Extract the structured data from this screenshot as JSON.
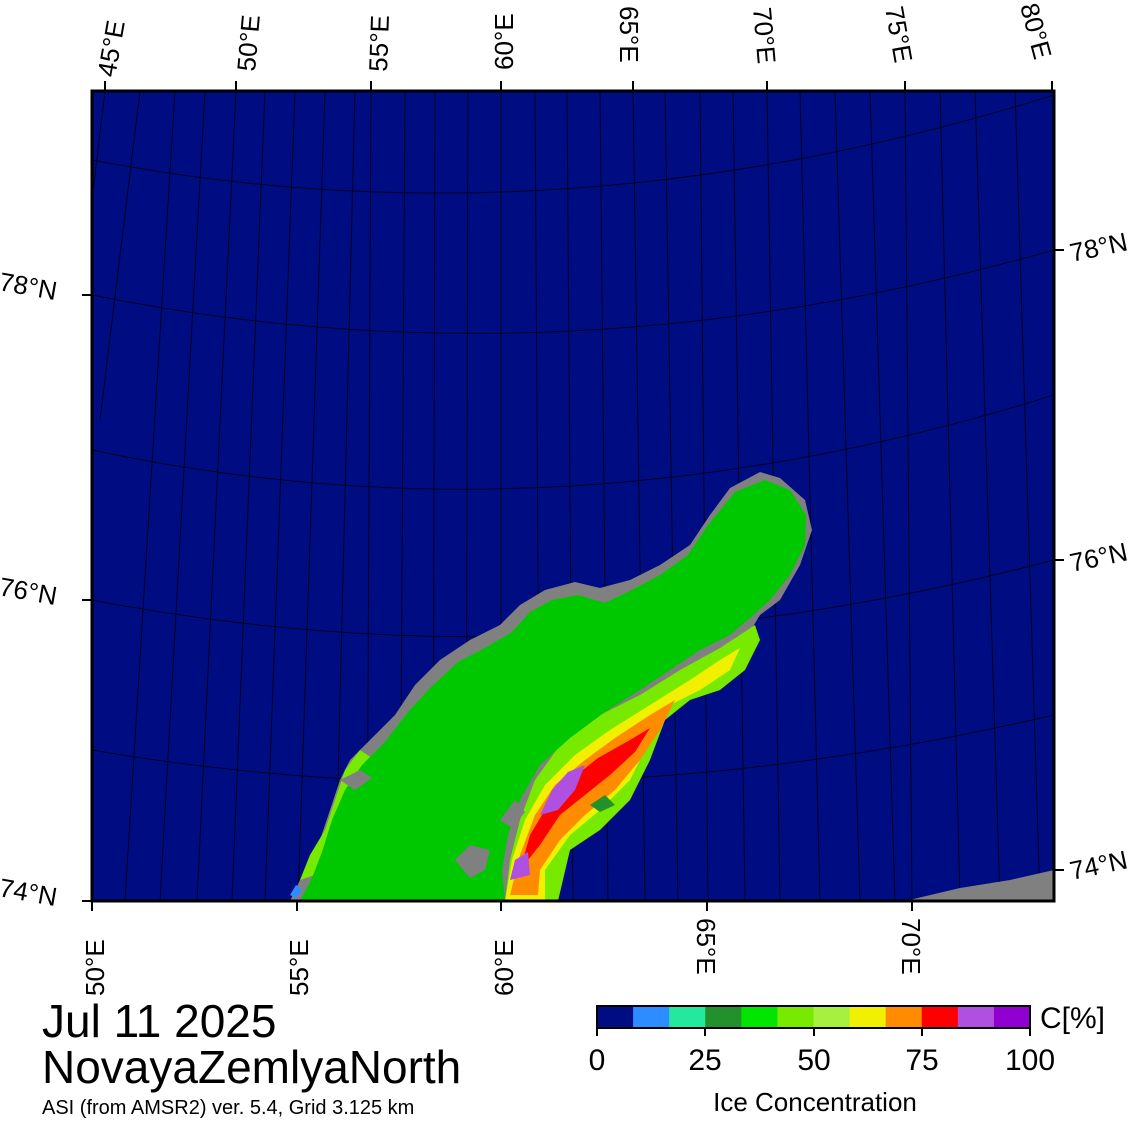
{
  "map": {
    "top_lon_labels": [
      "45°E",
      "50°E",
      "55°E",
      "60°E",
      "65°E",
      "70°E",
      "75°E",
      "80°E"
    ],
    "bottom_lon_labels": [
      "50°E",
      "55°E",
      "60°E",
      "65°E",
      "70°E"
    ],
    "left_lat_labels": [
      "78°N",
      "76°N",
      "74°N"
    ],
    "right_lat_labels": [
      "78°N",
      "76°N",
      "74°N"
    ],
    "colors": {
      "ocean": "#000c82",
      "land": "#00c800",
      "landmask": "#808080",
      "frame": "#000000"
    }
  },
  "title": {
    "date": "Jul 11 2025",
    "region": "NovayaZemlyaNorth",
    "source": "ASI (from AMSR2) ver. 5.4,  Grid 3.125 km"
  },
  "colorbar": {
    "unit": "C[%]",
    "title": "Ice Concentration",
    "ticks": [
      "0",
      "25",
      "50",
      "75",
      "100"
    ],
    "colors": [
      "#000c82",
      "#2d8cff",
      "#25e89f",
      "#23912b",
      "#00e600",
      "#78ea00",
      "#a8f040",
      "#f0f000",
      "#ff8c00",
      "#ff0000",
      "#b050e0",
      "#9000d0"
    ]
  }
}
